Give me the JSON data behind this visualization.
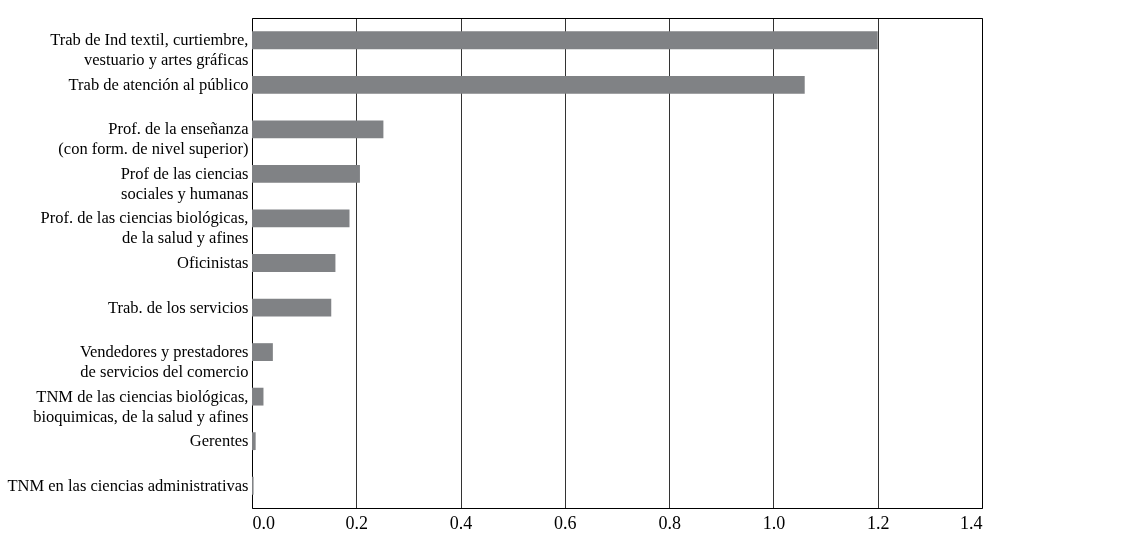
{
  "chart_data": {
    "type": "bar",
    "orientation": "horizontal",
    "categories": [
      "Trab de Ind textil, curtiembre,\nvestuario y artes gráficas",
      "Trab de atención al público",
      "Prof. de la enseñanza\n(con form. de nivel superior)",
      "Prof de las ciencias\nsociales y humanas",
      "Prof. de las ciencias biológicas,\nde la salud y afines",
      "Oficinistas",
      "Trab. de los servicios",
      "Vendedores y prestadores\nde servicios del comercio",
      "TNM de las ciencias biológicas,\nbioquimicas, de la salud y afines",
      "Gerentes",
      "TNM en las ciencias administrativas"
    ],
    "values": [
      1.2,
      1.06,
      0.252,
      0.207,
      0.187,
      0.16,
      0.152,
      0.04,
      0.022,
      0.007,
      0.003
    ],
    "color": "#808285",
    "xlim": [
      0,
      1.4
    ],
    "xticks": [
      {
        "value": 0,
        "label": "0.0"
      },
      {
        "value": 0.2,
        "label": "0.2"
      },
      {
        "value": 0.4,
        "label": "0.4"
      },
      {
        "value": 0.6,
        "label": "0.6"
      },
      {
        "value": 0.8,
        "label": "0.8"
      },
      {
        "value": 1.0,
        "label": "1.0"
      },
      {
        "value": 1.2,
        "label": "1.2"
      },
      {
        "value": 1.4,
        "label": "1.4"
      }
    ],
    "grid": "x"
  }
}
